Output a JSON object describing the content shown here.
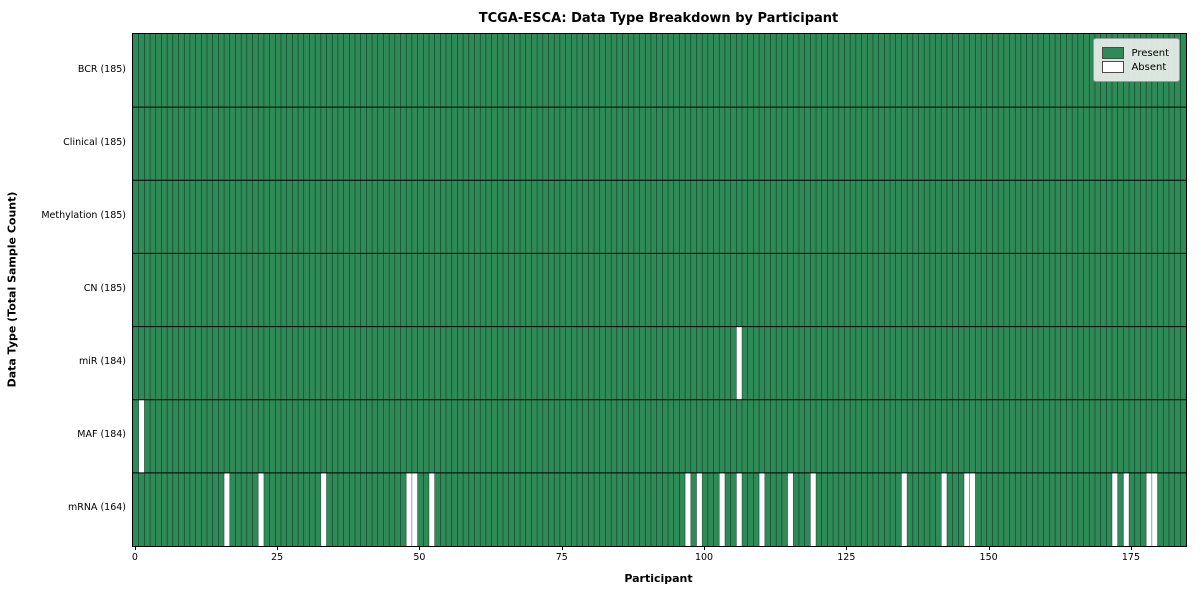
{
  "chart_data": {
    "type": "heatmap",
    "title": "TCGA-ESCA: Data Type Breakdown by Participant",
    "xlabel": "Participant",
    "ylabel": "Data Type (Total Sample Count)",
    "n_participants": 185,
    "x_ticks": [
      0,
      25,
      50,
      75,
      100,
      125,
      150,
      175
    ],
    "rows": [
      {
        "label": "BCR (185)",
        "total": 185,
        "absent": []
      },
      {
        "label": "Clinical (185)",
        "total": 185,
        "absent": []
      },
      {
        "label": "Methylation (185)",
        "total": 185,
        "absent": []
      },
      {
        "label": "CN (185)",
        "total": 185,
        "absent": []
      },
      {
        "label": "miR (184)",
        "total": 184,
        "absent": [
          106
        ]
      },
      {
        "label": "MAF (184)",
        "total": 184,
        "absent": [
          1
        ]
      },
      {
        "label": "mRNA (164)",
        "total": 164,
        "absent": [
          16,
          22,
          33,
          48,
          49,
          52,
          97,
          99,
          103,
          106,
          110,
          115,
          119,
          135,
          142,
          146,
          147,
          172,
          174,
          178,
          179
        ]
      }
    ],
    "legend": [
      {
        "label": "Present",
        "color": "#2e8b57"
      },
      {
        "label": "Absent",
        "color": "#ffffff"
      }
    ],
    "colors": {
      "present": "#2e8b57",
      "absent": "#ffffff",
      "cell_edge": "rgba(0,0,0,0.6)",
      "row_edge": "#000000"
    },
    "legend_position": "upper right",
    "grid": "cell-edges"
  }
}
